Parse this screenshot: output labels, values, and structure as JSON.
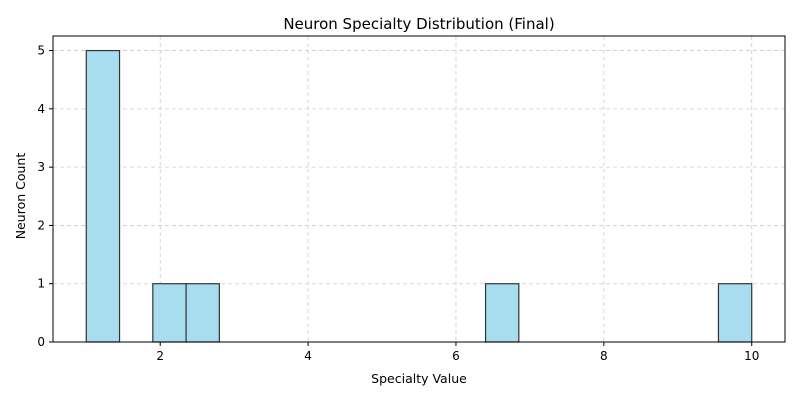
{
  "chart_data": {
    "type": "bar",
    "title": "Neuron Specialty Distribution (Final)",
    "xlabel": "Specialty Value",
    "ylabel": "Neuron Count",
    "xlim": [
      0.55,
      10.45
    ],
    "ylim": [
      0,
      5.25
    ],
    "xticks": [
      2,
      4,
      6,
      8,
      10
    ],
    "yticks": [
      0,
      1,
      2,
      3,
      4,
      5
    ],
    "grid": true,
    "legend": "none",
    "bin_edges": [
      1.0,
      1.45,
      1.9,
      2.35,
      2.8,
      3.25,
      3.7,
      4.15,
      4.6,
      5.05,
      5.5,
      5.95,
      6.4,
      6.85,
      7.3,
      7.75,
      8.2,
      8.65,
      9.1,
      9.55,
      10.0
    ],
    "counts": [
      5,
      0,
      1,
      1,
      0,
      0,
      0,
      0,
      0,
      0,
      0,
      0,
      1,
      0,
      0,
      0,
      0,
      0,
      0,
      1
    ],
    "colors": {
      "bar_fill": "#a8dcef",
      "bar_edge": "#333333",
      "grid": "#cccccc",
      "axis": "#000000"
    }
  }
}
